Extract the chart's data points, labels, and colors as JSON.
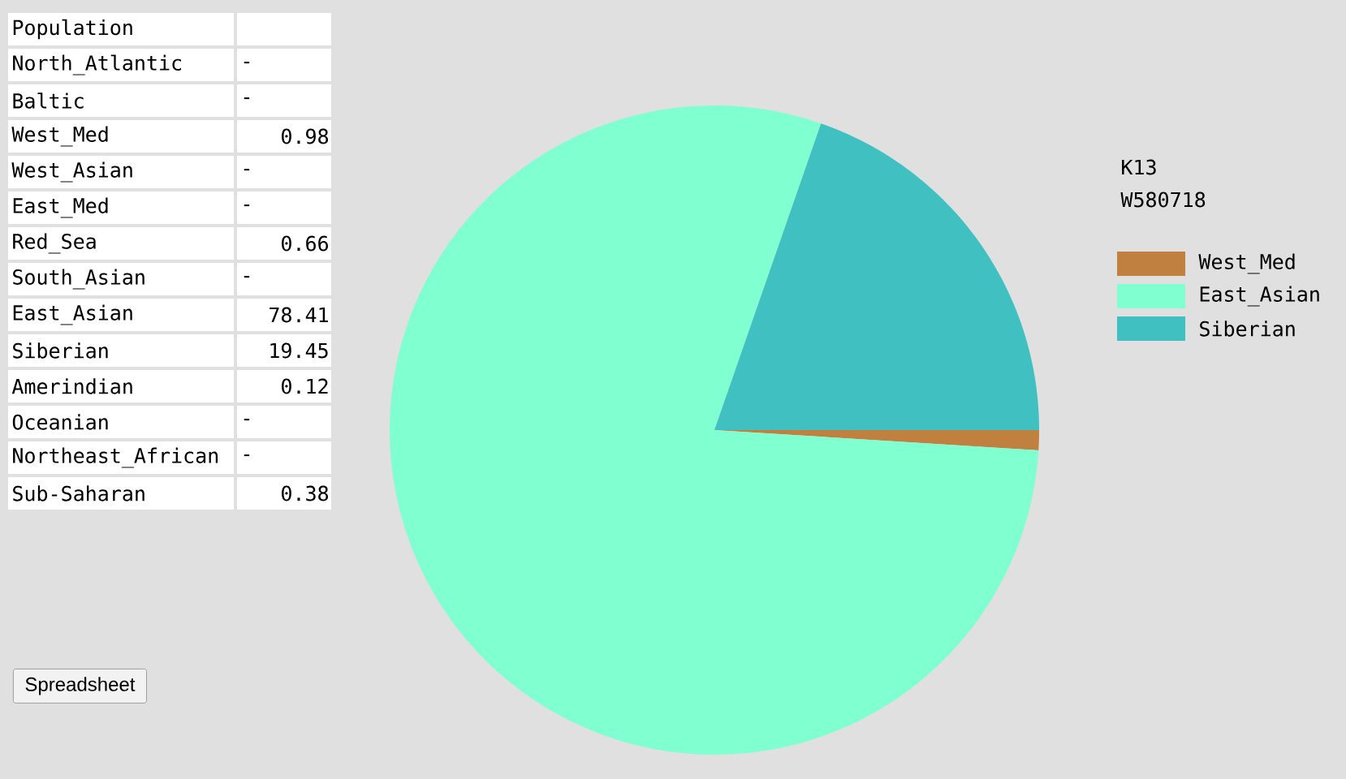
{
  "chart_data": [
    {
      "type": "other",
      "title": "Population",
      "categories": [
        "North_Atlantic",
        "Baltic",
        "West_Med",
        "West_Asian",
        "East_Med",
        "Red_Sea",
        "South_Asian",
        "East_Asian",
        "Siberian",
        "Amerindian",
        "Oceanian",
        "Northeast_African",
        "Sub-Saharan"
      ],
      "values": [
        null,
        null,
        0.98,
        null,
        null,
        0.66,
        null,
        78.41,
        19.45,
        0.12,
        null,
        null,
        0.38
      ],
      "value_labels": [
        "-",
        "-",
        "0.98",
        "-",
        "-",
        "0.66",
        "-",
        "78.41",
        "19.45",
        "0.12",
        "-",
        "-",
        "0.38"
      ],
      "annotations": [
        "Spreadsheet"
      ]
    },
    {
      "type": "pie",
      "title": "K13",
      "subtitle": "W580718",
      "categories": [
        "West_Med",
        "East_Asian",
        "Siberian"
      ],
      "values": [
        0.98,
        78.41,
        19.45
      ],
      "colors": [
        "#c08040",
        "#80ffd0",
        "#40c0c0"
      ],
      "legend": "right"
    }
  ]
}
